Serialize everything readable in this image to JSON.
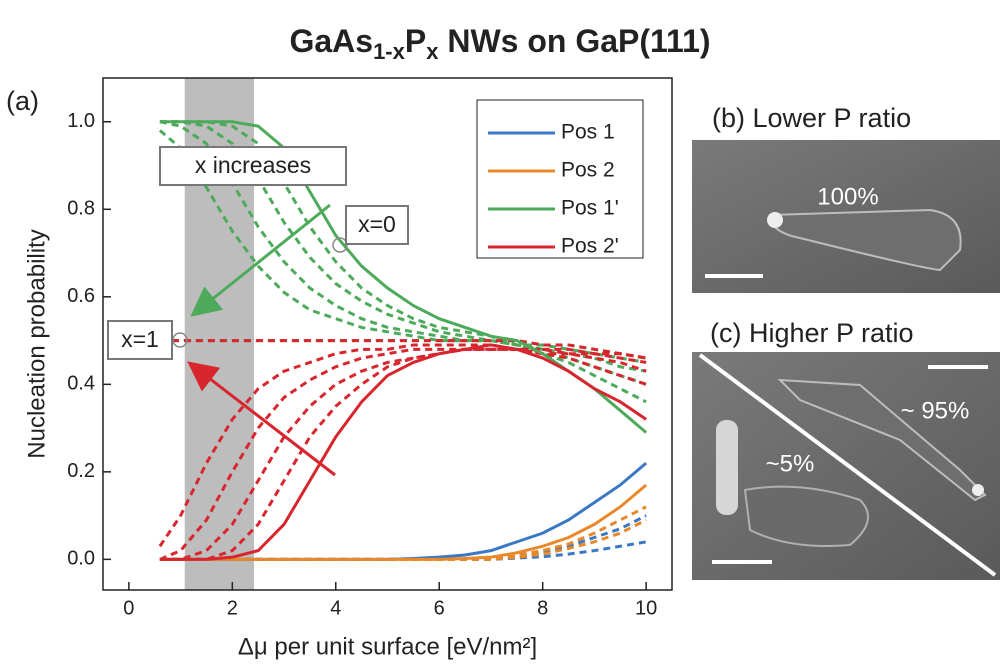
{
  "title": [
    {
      "text": "GaAs"
    },
    {
      "text": "1-x",
      "sub": true
    },
    {
      "text": "P"
    },
    {
      "text": "x",
      "sub": true
    },
    {
      "text": " NWs on GaP(111)"
    }
  ],
  "chart_data": {
    "type": "line",
    "panel_label": "(a)",
    "x_label": "Δμ per unit surface [eV/nm²]",
    "y_label": "Nucleation probability",
    "xlim": [
      -0.5,
      10.5
    ],
    "ylim": [
      -0.07,
      1.1
    ],
    "xticks": [
      0,
      2,
      4,
      6,
      8,
      10
    ],
    "yticks": [
      {
        "value": 0,
        "label": "0.0"
      },
      0.2,
      0.4,
      0.6,
      0.8,
      {
        "value": 1,
        "label": "1.0"
      }
    ],
    "shaded_region": [
      1.08,
      2.42
    ],
    "annotations": [
      "x increases",
      "x=0",
      "x=1"
    ],
    "legend": "upper right",
    "x": [
      0.6,
      1,
      1.5,
      2,
      2.5,
      3,
      3.5,
      4,
      4.5,
      5,
      5.5,
      6,
      6.5,
      7,
      7.5,
      8,
      8.5,
      9,
      9.5,
      10
    ],
    "series": [
      {
        "name": "Pos 1",
        "color": "#3a78c4",
        "values": [
          0,
          0,
          0,
          0,
          0,
          0,
          0,
          0,
          0,
          0,
          0.002,
          0.005,
          0.01,
          0.02,
          0.04,
          0.06,
          0.09,
          0.13,
          0.17,
          0.22
        ]
      },
      {
        "name": "Pos 2",
        "color": "#e8882a",
        "values": [
          0,
          0,
          0,
          0,
          0,
          0,
          0,
          0,
          0,
          0,
          0,
          0,
          0.002,
          0.005,
          0.015,
          0.03,
          0.05,
          0.08,
          0.12,
          0.17
        ]
      },
      {
        "name": "Pos 1'",
        "color": "#4daa5a",
        "values": [
          1,
          1,
          1,
          1,
          0.99,
          0.94,
          0.84,
          0.74,
          0.67,
          0.62,
          0.58,
          0.55,
          0.53,
          0.51,
          0.5,
          0.47,
          0.43,
          0.39,
          0.34,
          0.29
        ]
      },
      {
        "name": "Pos 2'",
        "color": "#d8262e",
        "values": [
          0,
          0,
          0,
          0.005,
          0.02,
          0.08,
          0.18,
          0.28,
          0.36,
          0.42,
          0.45,
          0.47,
          0.48,
          0.49,
          0.48,
          0.46,
          0.43,
          0.39,
          0.36,
          0.32
        ]
      }
    ],
    "dashed_series": [
      {
        "color": "#4daa5a",
        "values": [
          1,
          1,
          1,
          0.99,
          0.95,
          0.86,
          0.76,
          0.68,
          0.62,
          0.58,
          0.55,
          0.53,
          0.52,
          0.51,
          0.49,
          0.47,
          0.45,
          0.42,
          0.39,
          0.36
        ]
      },
      {
        "color": "#4daa5a",
        "values": [
          1,
          1,
          0.99,
          0.95,
          0.87,
          0.77,
          0.69,
          0.63,
          0.59,
          0.56,
          0.54,
          0.52,
          0.51,
          0.5,
          0.49,
          0.48,
          0.46,
          0.44,
          0.42,
          0.4
        ]
      },
      {
        "color": "#4daa5a",
        "values": [
          1,
          0.99,
          0.95,
          0.86,
          0.76,
          0.68,
          0.62,
          0.58,
          0.55,
          0.53,
          0.52,
          0.51,
          0.5,
          0.5,
          0.49,
          0.48,
          0.47,
          0.46,
          0.44,
          0.43
        ]
      },
      {
        "color": "#4daa5a",
        "values": [
          0.98,
          0.94,
          0.85,
          0.75,
          0.67,
          0.61,
          0.57,
          0.55,
          0.53,
          0.52,
          0.51,
          0.5,
          0.5,
          0.5,
          0.49,
          0.49,
          0.48,
          0.47,
          0.46,
          0.45
        ]
      },
      {
        "color": "#4daa5a",
        "values": [
          0.5,
          0.5,
          0.5,
          0.5,
          0.5,
          0.5,
          0.5,
          0.5,
          0.5,
          0.5,
          0.5,
          0.5,
          0.5,
          0.5,
          0.5,
          0.49,
          0.49,
          0.48,
          0.47,
          0.46
        ]
      },
      {
        "color": "#d8262e",
        "values": [
          0,
          0,
          0,
          0.02,
          0.08,
          0.18,
          0.28,
          0.35,
          0.4,
          0.44,
          0.46,
          0.47,
          0.48,
          0.48,
          0.48,
          0.47,
          0.46,
          0.44,
          0.42,
          0.4
        ]
      },
      {
        "color": "#d8262e",
        "values": [
          0,
          0,
          0.02,
          0.08,
          0.18,
          0.28,
          0.35,
          0.4,
          0.43,
          0.45,
          0.46,
          0.47,
          0.48,
          0.48,
          0.48,
          0.47,
          0.47,
          0.46,
          0.45,
          0.43
        ]
      },
      {
        "color": "#d8262e",
        "values": [
          0,
          0.02,
          0.09,
          0.2,
          0.3,
          0.37,
          0.41,
          0.44,
          0.46,
          0.47,
          0.48,
          0.48,
          0.48,
          0.48,
          0.48,
          0.48,
          0.47,
          0.47,
          0.46,
          0.45
        ]
      },
      {
        "color": "#d8262e",
        "values": [
          0.03,
          0.1,
          0.22,
          0.32,
          0.39,
          0.43,
          0.45,
          0.47,
          0.48,
          0.48,
          0.49,
          0.49,
          0.49,
          0.49,
          0.48,
          0.48,
          0.48,
          0.47,
          0.47,
          0.46
        ]
      },
      {
        "color": "#d8262e",
        "values": [
          0.5,
          0.5,
          0.5,
          0.5,
          0.5,
          0.5,
          0.5,
          0.5,
          0.5,
          0.5,
          0.5,
          0.5,
          0.5,
          0.5,
          0.5,
          0.49,
          0.49,
          0.48,
          0.47,
          0.46
        ]
      },
      {
        "color": "#3a78c4",
        "values": [
          0,
          0,
          0,
          0,
          0,
          0,
          0,
          0,
          0,
          0,
          0,
          0,
          0,
          0,
          0.003,
          0.006,
          0.012,
          0.02,
          0.03,
          0.04
        ]
      },
      {
        "color": "#3a78c4",
        "values": [
          0,
          0,
          0,
          0,
          0,
          0,
          0,
          0,
          0,
          0,
          0,
          0,
          0,
          0.003,
          0.008,
          0.016,
          0.03,
          0.05,
          0.07,
          0.1
        ]
      },
      {
        "color": "#e8882a",
        "values": [
          0,
          0,
          0,
          0,
          0,
          0,
          0,
          0,
          0,
          0,
          0,
          0,
          0,
          0,
          0.005,
          0.012,
          0.025,
          0.04,
          0.06,
          0.09
        ]
      },
      {
        "color": "#e8882a",
        "values": [
          0,
          0,
          0,
          0,
          0,
          0,
          0,
          0,
          0,
          0,
          0,
          0,
          0,
          0.004,
          0.01,
          0.02,
          0.035,
          0.06,
          0.09,
          0.12
        ]
      }
    ]
  },
  "panel_b": {
    "label": "(b) Lower P ratio",
    "annotation": "100%"
  },
  "panel_c": {
    "label": "(c) Higher P ratio",
    "annotations": [
      "~ 95%",
      "~5%"
    ]
  }
}
